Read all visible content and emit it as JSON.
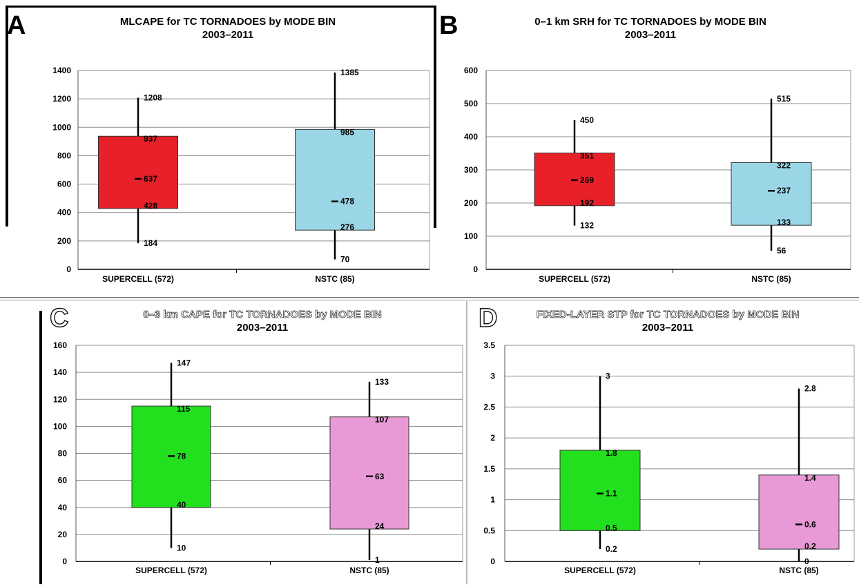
{
  "panels": [
    {
      "letter": "A",
      "title": "MLCAPE for TC TORNADOES by MODE BIN",
      "subtitle": "2003–2011",
      "chart_data": {
        "type": "box",
        "y_ticks": [
          0,
          200,
          400,
          600,
          800,
          1000,
          1200,
          1400
        ],
        "ylim": [
          0,
          1400
        ],
        "categories": [
          "SUPERCELL (572)",
          "NSTC (85)"
        ],
        "boxes": [
          {
            "label": "SUPERCELL (572)",
            "whisker_low": 184,
            "q1": 428,
            "median": 637,
            "q3": 937,
            "whisker_high": 1208,
            "color": "#e8202a"
          },
          {
            "label": "NSTC (85)",
            "whisker_low": 70,
            "q1": 276,
            "median": 478,
            "q3": 985,
            "whisker_high": 1385,
            "color": "#9ad6e6"
          }
        ]
      }
    },
    {
      "letter": "B",
      "title": "0–1 km SRH for TC TORNADOES by MODE BIN",
      "subtitle": "2003–2011",
      "chart_data": {
        "type": "box",
        "y_ticks": [
          0,
          100,
          200,
          300,
          400,
          500,
          600
        ],
        "ylim": [
          0,
          600
        ],
        "categories": [
          "SUPERCELL (572)",
          "NSTC (85)"
        ],
        "boxes": [
          {
            "label": "SUPERCELL (572)",
            "whisker_low": 132,
            "q1": 192,
            "median": 269,
            "q3": 351,
            "whisker_high": 450,
            "color": "#e8202a"
          },
          {
            "label": "NSTC (85)",
            "whisker_low": 56,
            "q1": 133,
            "median": 237,
            "q3": 322,
            "whisker_high": 515,
            "color": "#9ad6e6"
          }
        ]
      }
    },
    {
      "letter": "C",
      "title": "0–3 km CAPE for TC TORNADOES by MODE BIN",
      "subtitle": "2003–2011",
      "chart_data": {
        "type": "box",
        "y_ticks": [
          0,
          20,
          40,
          60,
          80,
          100,
          120,
          140,
          160
        ],
        "ylim": [
          0,
          160
        ],
        "categories": [
          "SUPERCELL (572)",
          "NSTC (85)"
        ],
        "boxes": [
          {
            "label": "SUPERCELL (572)",
            "whisker_low": 10,
            "q1": 40,
            "median": 78,
            "q3": 115,
            "whisker_high": 147,
            "color": "#22e01e"
          },
          {
            "label": "NSTC (85)",
            "whisker_low": 1,
            "q1": 24,
            "median": 63,
            "q3": 107,
            "whisker_high": 133,
            "color": "#e89ad6"
          }
        ]
      }
    },
    {
      "letter": "D",
      "title": "FIXED-LAYER STP for TC TORNADOES by MODE BIN",
      "subtitle": "2003–2011",
      "chart_data": {
        "type": "box",
        "y_ticks": [
          0,
          0.5,
          1,
          1.5,
          2,
          2.5,
          3,
          3.5
        ],
        "ylim": [
          0,
          3.5
        ],
        "categories": [
          "SUPERCELL (572)",
          "NSTC (85)"
        ],
        "boxes": [
          {
            "label": "SUPERCELL (572)",
            "whisker_low": 0.2,
            "q1": 0.5,
            "median": 1.1,
            "q3": 1.8,
            "whisker_high": 3,
            "color": "#22e01e"
          },
          {
            "label": "NSTC (85)",
            "whisker_low": 0,
            "q1": 0.2,
            "median": 0.6,
            "q3": 1.4,
            "whisker_high": 2.8,
            "color": "#e89ad6"
          }
        ]
      }
    }
  ]
}
